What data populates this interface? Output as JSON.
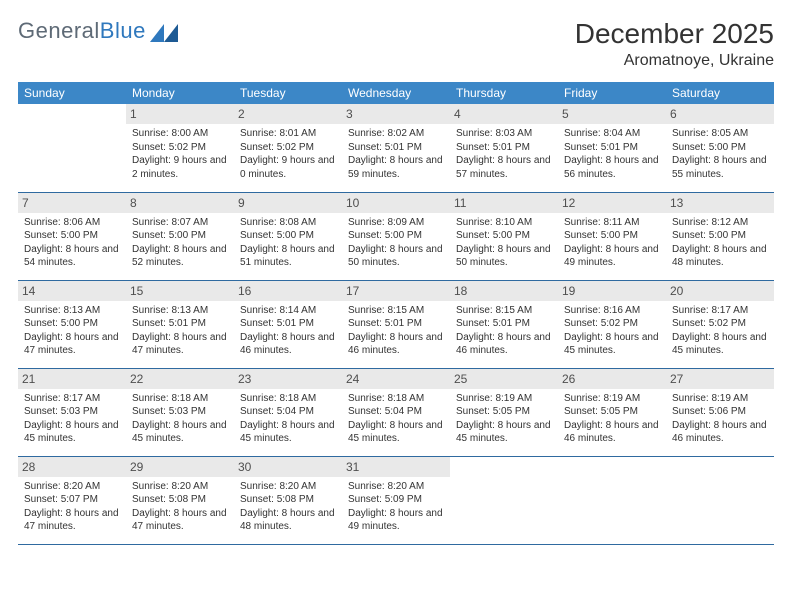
{
  "brand": {
    "name_gray": "General",
    "name_blue": "Blue"
  },
  "title": "December 2025",
  "location": "Aromatnoye, Ukraine",
  "colors": {
    "header_bg": "#3c87c7",
    "header_text": "#ffffff",
    "daynum_bg": "#e9e9e9",
    "row_border": "#2f6aa0",
    "text": "#333333",
    "logo_gray": "#5e6a76",
    "logo_blue": "#2f78bd"
  },
  "weekdays": [
    "Sunday",
    "Monday",
    "Tuesday",
    "Wednesday",
    "Thursday",
    "Friday",
    "Saturday"
  ],
  "weeks": [
    [
      {
        "n": "",
        "sr": "",
        "ss": "",
        "dl": ""
      },
      {
        "n": "1",
        "sr": "Sunrise: 8:00 AM",
        "ss": "Sunset: 5:02 PM",
        "dl": "Daylight: 9 hours and 2 minutes."
      },
      {
        "n": "2",
        "sr": "Sunrise: 8:01 AM",
        "ss": "Sunset: 5:02 PM",
        "dl": "Daylight: 9 hours and 0 minutes."
      },
      {
        "n": "3",
        "sr": "Sunrise: 8:02 AM",
        "ss": "Sunset: 5:01 PM",
        "dl": "Daylight: 8 hours and 59 minutes."
      },
      {
        "n": "4",
        "sr": "Sunrise: 8:03 AM",
        "ss": "Sunset: 5:01 PM",
        "dl": "Daylight: 8 hours and 57 minutes."
      },
      {
        "n": "5",
        "sr": "Sunrise: 8:04 AM",
        "ss": "Sunset: 5:01 PM",
        "dl": "Daylight: 8 hours and 56 minutes."
      },
      {
        "n": "6",
        "sr": "Sunrise: 8:05 AM",
        "ss": "Sunset: 5:00 PM",
        "dl": "Daylight: 8 hours and 55 minutes."
      }
    ],
    [
      {
        "n": "7",
        "sr": "Sunrise: 8:06 AM",
        "ss": "Sunset: 5:00 PM",
        "dl": "Daylight: 8 hours and 54 minutes."
      },
      {
        "n": "8",
        "sr": "Sunrise: 8:07 AM",
        "ss": "Sunset: 5:00 PM",
        "dl": "Daylight: 8 hours and 52 minutes."
      },
      {
        "n": "9",
        "sr": "Sunrise: 8:08 AM",
        "ss": "Sunset: 5:00 PM",
        "dl": "Daylight: 8 hours and 51 minutes."
      },
      {
        "n": "10",
        "sr": "Sunrise: 8:09 AM",
        "ss": "Sunset: 5:00 PM",
        "dl": "Daylight: 8 hours and 50 minutes."
      },
      {
        "n": "11",
        "sr": "Sunrise: 8:10 AM",
        "ss": "Sunset: 5:00 PM",
        "dl": "Daylight: 8 hours and 50 minutes."
      },
      {
        "n": "12",
        "sr": "Sunrise: 8:11 AM",
        "ss": "Sunset: 5:00 PM",
        "dl": "Daylight: 8 hours and 49 minutes."
      },
      {
        "n": "13",
        "sr": "Sunrise: 8:12 AM",
        "ss": "Sunset: 5:00 PM",
        "dl": "Daylight: 8 hours and 48 minutes."
      }
    ],
    [
      {
        "n": "14",
        "sr": "Sunrise: 8:13 AM",
        "ss": "Sunset: 5:00 PM",
        "dl": "Daylight: 8 hours and 47 minutes."
      },
      {
        "n": "15",
        "sr": "Sunrise: 8:13 AM",
        "ss": "Sunset: 5:01 PM",
        "dl": "Daylight: 8 hours and 47 minutes."
      },
      {
        "n": "16",
        "sr": "Sunrise: 8:14 AM",
        "ss": "Sunset: 5:01 PM",
        "dl": "Daylight: 8 hours and 46 minutes."
      },
      {
        "n": "17",
        "sr": "Sunrise: 8:15 AM",
        "ss": "Sunset: 5:01 PM",
        "dl": "Daylight: 8 hours and 46 minutes."
      },
      {
        "n": "18",
        "sr": "Sunrise: 8:15 AM",
        "ss": "Sunset: 5:01 PM",
        "dl": "Daylight: 8 hours and 46 minutes."
      },
      {
        "n": "19",
        "sr": "Sunrise: 8:16 AM",
        "ss": "Sunset: 5:02 PM",
        "dl": "Daylight: 8 hours and 45 minutes."
      },
      {
        "n": "20",
        "sr": "Sunrise: 8:17 AM",
        "ss": "Sunset: 5:02 PM",
        "dl": "Daylight: 8 hours and 45 minutes."
      }
    ],
    [
      {
        "n": "21",
        "sr": "Sunrise: 8:17 AM",
        "ss": "Sunset: 5:03 PM",
        "dl": "Daylight: 8 hours and 45 minutes."
      },
      {
        "n": "22",
        "sr": "Sunrise: 8:18 AM",
        "ss": "Sunset: 5:03 PM",
        "dl": "Daylight: 8 hours and 45 minutes."
      },
      {
        "n": "23",
        "sr": "Sunrise: 8:18 AM",
        "ss": "Sunset: 5:04 PM",
        "dl": "Daylight: 8 hours and 45 minutes."
      },
      {
        "n": "24",
        "sr": "Sunrise: 8:18 AM",
        "ss": "Sunset: 5:04 PM",
        "dl": "Daylight: 8 hours and 45 minutes."
      },
      {
        "n": "25",
        "sr": "Sunrise: 8:19 AM",
        "ss": "Sunset: 5:05 PM",
        "dl": "Daylight: 8 hours and 45 minutes."
      },
      {
        "n": "26",
        "sr": "Sunrise: 8:19 AM",
        "ss": "Sunset: 5:05 PM",
        "dl": "Daylight: 8 hours and 46 minutes."
      },
      {
        "n": "27",
        "sr": "Sunrise: 8:19 AM",
        "ss": "Sunset: 5:06 PM",
        "dl": "Daylight: 8 hours and 46 minutes."
      }
    ],
    [
      {
        "n": "28",
        "sr": "Sunrise: 8:20 AM",
        "ss": "Sunset: 5:07 PM",
        "dl": "Daylight: 8 hours and 47 minutes."
      },
      {
        "n": "29",
        "sr": "Sunrise: 8:20 AM",
        "ss": "Sunset: 5:08 PM",
        "dl": "Daylight: 8 hours and 47 minutes."
      },
      {
        "n": "30",
        "sr": "Sunrise: 8:20 AM",
        "ss": "Sunset: 5:08 PM",
        "dl": "Daylight: 8 hours and 48 minutes."
      },
      {
        "n": "31",
        "sr": "Sunrise: 8:20 AM",
        "ss": "Sunset: 5:09 PM",
        "dl": "Daylight: 8 hours and 49 minutes."
      },
      {
        "n": "",
        "sr": "",
        "ss": "",
        "dl": ""
      },
      {
        "n": "",
        "sr": "",
        "ss": "",
        "dl": ""
      },
      {
        "n": "",
        "sr": "",
        "ss": "",
        "dl": ""
      }
    ]
  ]
}
